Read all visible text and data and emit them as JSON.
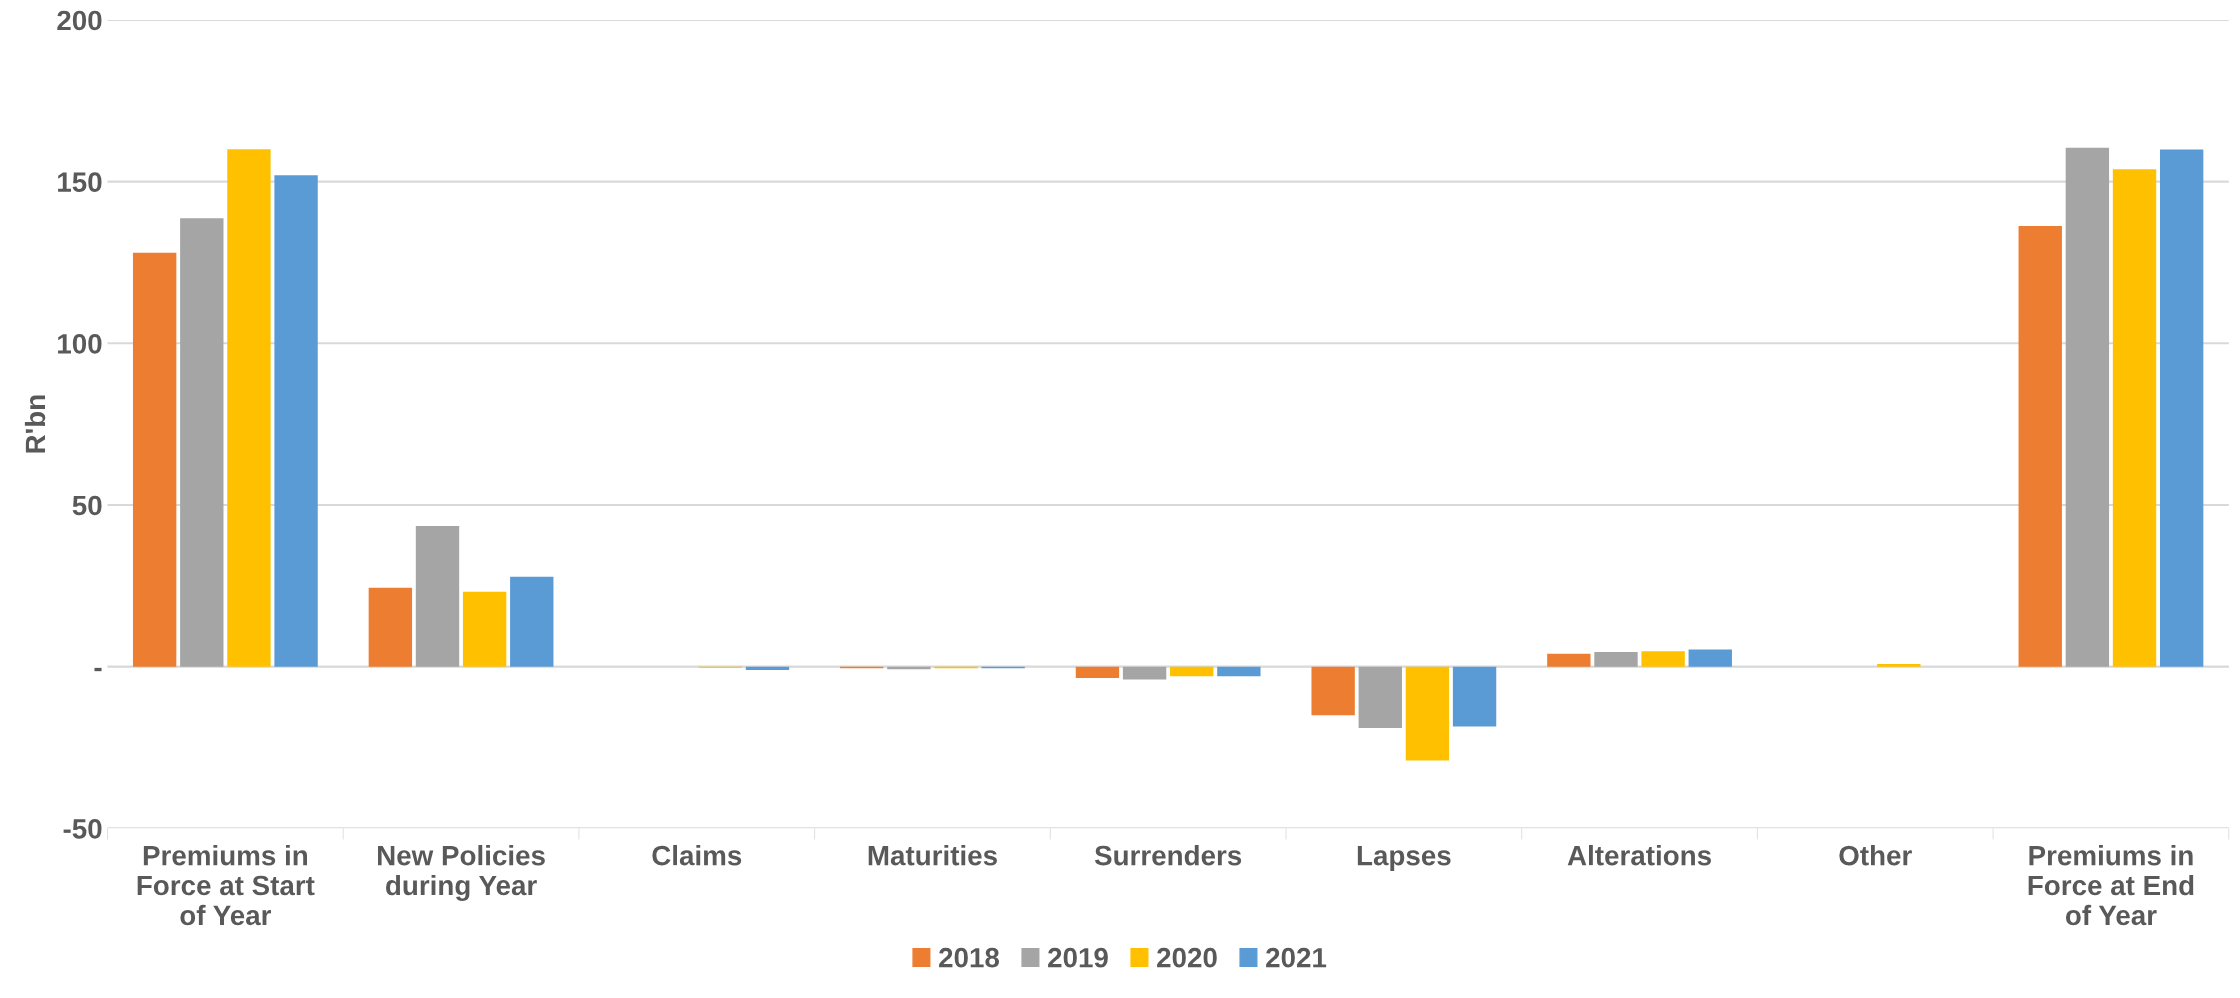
{
  "chart_data": {
    "type": "bar",
    "ylabel": "R'bn",
    "categories": [
      "Premiums in Force at Start of Year",
      "New Policies during Year",
      "Claims",
      "Maturities",
      "Surrenders",
      "Lapses",
      "Alterations",
      "Other",
      "Premiums in Force at End of Year"
    ],
    "series": [
      {
        "name": "2018",
        "color": "#ed7d31",
        "values": [
          128,
          24.4,
          0,
          -0.5,
          -3.5,
          -15,
          4,
          0,
          136.3
        ]
      },
      {
        "name": "2019",
        "color": "#a5a5a5",
        "values": [
          138.7,
          43.5,
          0,
          -0.8,
          -4,
          -19,
          4.5,
          0,
          160.5
        ]
      },
      {
        "name": "2020",
        "color": "#ffc000",
        "values": [
          160,
          23.2,
          -0.3,
          -0.5,
          -3,
          -29,
          4.8,
          0.8,
          153.8
        ]
      },
      {
        "name": "2021",
        "color": "#5b9bd5",
        "values": [
          152,
          27.8,
          -1,
          -0.5,
          -3,
          -18.5,
          5.3,
          0,
          159.9
        ]
      }
    ],
    "ylim": [
      -50,
      200
    ],
    "yticks": [
      {
        "value": -50,
        "label": "-50"
      },
      {
        "value": 0,
        "label": "-"
      },
      50,
      100,
      150,
      200
    ],
    "grid": "y",
    "legend": "bottom"
  }
}
